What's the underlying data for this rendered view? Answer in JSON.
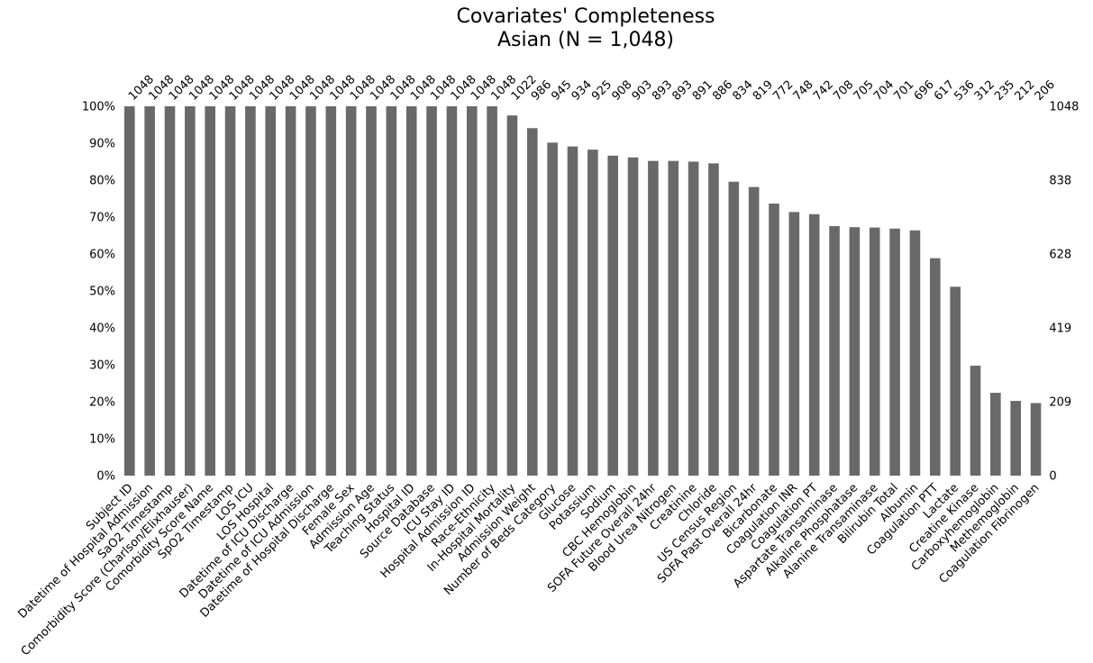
{
  "chart_data": {
    "type": "bar",
    "title": "Covariates' Completeness",
    "subtitle": "Asian (N = 1,048)",
    "categories": [
      "Subject ID",
      "Datetime of Hospital Admission",
      "SaO2 Timestamp",
      "Comorbidity Score (Charlson/Elixhauser)",
      "Comorbidity Score Name",
      "SpO2 Timestamp",
      "LOS ICU",
      "LOS Hospital",
      "Datetime of ICU Discharge",
      "Datetime of ICU Admission",
      "Datetime of Hospital Discharge",
      "Female Sex",
      "Admission Age",
      "Teaching Status",
      "Hospital ID",
      "Source Database",
      "ICU Stay ID",
      "Hospital Admission ID",
      "Race-Ethnicity",
      "In-Hospital Mortality",
      "Admission Weight",
      "Number of Beds Category",
      "Glucose",
      "Potassium",
      "Sodium",
      "CBC Hemoglobin",
      "SOFA Future Overall 24hr",
      "Blood Urea Nitrogen",
      "Creatinine",
      "Chloride",
      "US Census Region",
      "SOFA Past Overall 24hr",
      "Bicarbonate",
      "Coagulation INR",
      "Coagulation PT",
      "Aspartate Transaminase",
      "Alkaline Phosphatase",
      "Alanine Transaminase",
      "Bilirubin Total",
      "Albumin",
      "Coagulation PTT",
      "Lactate",
      "Creatine Kinase",
      "Carboxyhemoglobin",
      "Methemoglobin",
      "Coagulation Fibrinogen"
    ],
    "values": [
      1048,
      1048,
      1048,
      1048,
      1048,
      1048,
      1048,
      1048,
      1048,
      1048,
      1048,
      1048,
      1048,
      1048,
      1048,
      1048,
      1048,
      1048,
      1048,
      1022,
      986,
      945,
      934,
      925,
      908,
      903,
      893,
      893,
      891,
      886,
      834,
      819,
      772,
      748,
      742,
      708,
      705,
      704,
      701,
      696,
      617,
      536,
      312,
      235,
      212,
      206
    ],
    "total": 1048,
    "ylim": [
      0,
      1
    ],
    "left_ticks": [
      "0%",
      "10%",
      "20%",
      "30%",
      "40%",
      "50%",
      "60%",
      "70%",
      "80%",
      "90%",
      "100%"
    ],
    "left_tick_values": [
      0,
      0.1,
      0.2,
      0.3,
      0.4,
      0.5,
      0.6,
      0.7,
      0.8,
      0.9,
      1.0
    ],
    "right_ticks": [
      "0",
      "209",
      "419",
      "628",
      "838",
      "1048"
    ],
    "right_tick_values": [
      0,
      0.2,
      0.4,
      0.6,
      0.8,
      1.0
    ],
    "bar_color": "#696969",
    "grid": false,
    "legend": "none"
  }
}
